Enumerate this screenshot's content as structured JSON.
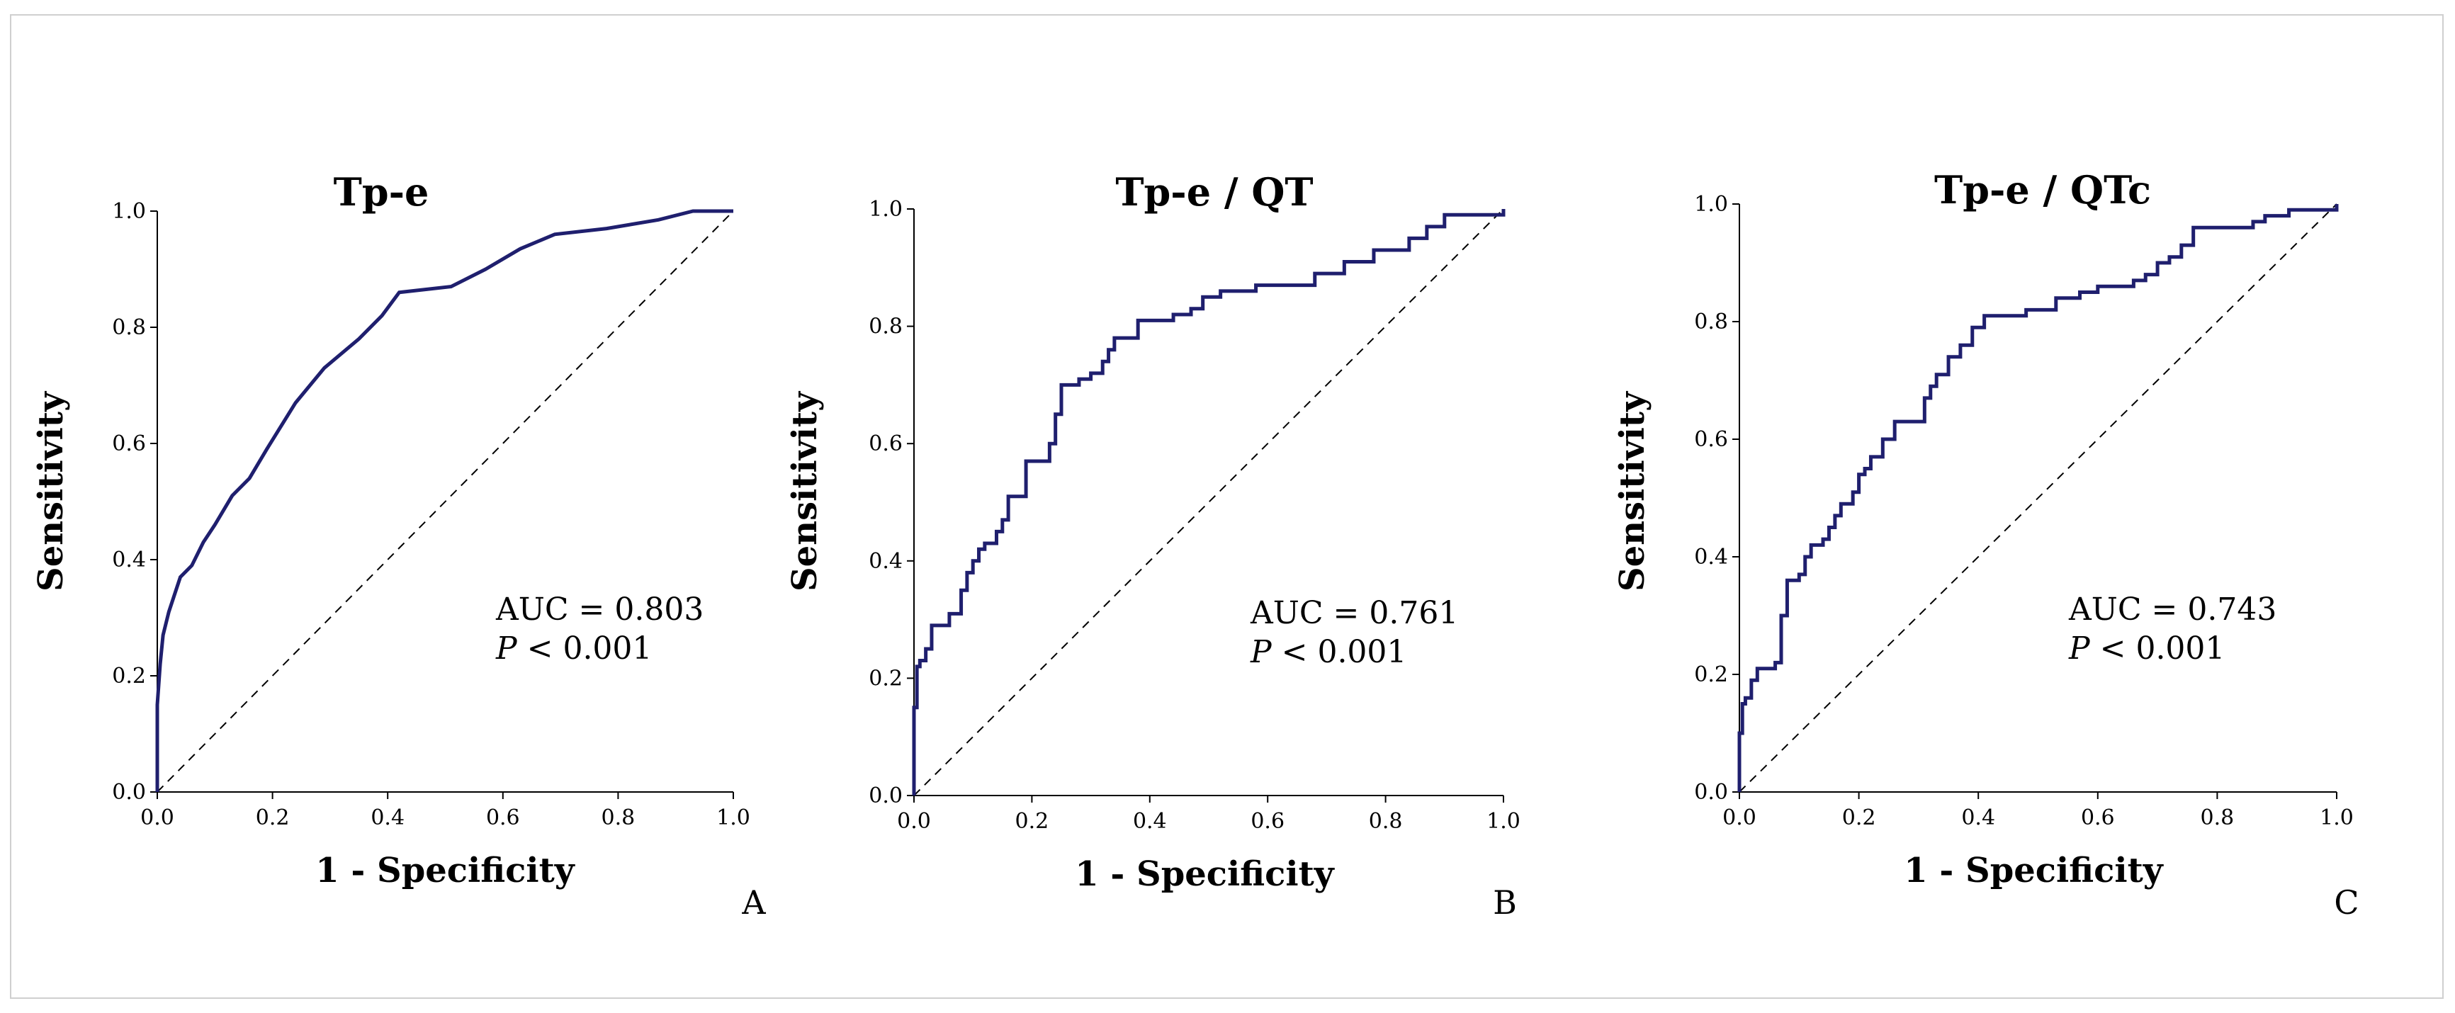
{
  "figure": {
    "border_color": "#cfcfcf"
  },
  "chart_data": [
    {
      "type": "line",
      "chart_subtype": "roc",
      "title": "Tp-e",
      "xlabel": "1 - Specificity",
      "ylabel": "Sensitivity",
      "xlim": [
        0,
        1
      ],
      "ylim": [
        0,
        1
      ],
      "x_ticks": [
        "0.0",
        "0.2",
        "0.4",
        "0.6",
        "0.8",
        "1.0"
      ],
      "y_ticks": [
        "0.0",
        "0.2",
        "0.4",
        "0.6",
        "0.8",
        "1.0"
      ],
      "stat_label": "AUC = 0.803",
      "p_symbol": "P",
      "p_rest": " < 0.001",
      "panel_letter": "A",
      "curve_color": "#1f1f6e",
      "step": false,
      "series": [
        {
          "name": "ROC",
          "x": [
            0,
            0,
            0.005,
            0.01,
            0.02,
            0.03,
            0.04,
            0.06,
            0.08,
            0.1,
            0.13,
            0.16,
            0.19,
            0.24,
            0.29,
            0.35,
            0.39,
            0.42,
            0.51,
            0.57,
            0.63,
            0.69,
            0.78,
            0.87,
            0.93,
            0.97,
            1.0
          ],
          "y": [
            0,
            0.15,
            0.22,
            0.27,
            0.31,
            0.34,
            0.37,
            0.39,
            0.43,
            0.46,
            0.51,
            0.54,
            0.59,
            0.67,
            0.73,
            0.78,
            0.82,
            0.86,
            0.87,
            0.9,
            0.935,
            0.96,
            0.97,
            0.985,
            1.0,
            1.0,
            1.0
          ]
        },
        {
          "name": "Reference",
          "x": [
            0,
            1
          ],
          "y": [
            0,
            1
          ]
        }
      ]
    },
    {
      "type": "line",
      "chart_subtype": "roc",
      "title": "Tp-e / QT",
      "xlabel": "1 - Specificity",
      "ylabel": "Sensitivity",
      "xlim": [
        0,
        1
      ],
      "ylim": [
        0,
        1
      ],
      "x_ticks": [
        "0.0",
        "0.2",
        "0.4",
        "0.6",
        "0.8",
        "1.0"
      ],
      "y_ticks": [
        "0.0",
        "0.2",
        "0.4",
        "0.6",
        "0.8",
        "1.0"
      ],
      "stat_label": "AUC = 0.761",
      "p_symbol": "P",
      "p_rest": " < 0.001",
      "panel_letter": "B",
      "curve_color": "#1f1f6e",
      "step": true,
      "series": [
        {
          "name": "ROC",
          "x": [
            0,
            0.005,
            0.01,
            0.02,
            0.03,
            0.04,
            0.06,
            0.08,
            0.09,
            0.1,
            0.11,
            0.12,
            0.14,
            0.15,
            0.16,
            0.17,
            0.19,
            0.21,
            0.23,
            0.24,
            0.25,
            0.26,
            0.28,
            0.3,
            0.32,
            0.33,
            0.34,
            0.36,
            0.38,
            0.44,
            0.47,
            0.49,
            0.52,
            0.58,
            0.64,
            0.68,
            0.73,
            0.78,
            0.84,
            0.87,
            0.9,
            1.0
          ],
          "y": [
            0.15,
            0.22,
            0.23,
            0.25,
            0.29,
            0.29,
            0.31,
            0.35,
            0.38,
            0.4,
            0.42,
            0.43,
            0.45,
            0.47,
            0.51,
            0.51,
            0.57,
            0.57,
            0.6,
            0.65,
            0.7,
            0.7,
            0.71,
            0.72,
            0.74,
            0.76,
            0.78,
            0.78,
            0.81,
            0.82,
            0.83,
            0.85,
            0.86,
            0.87,
            0.87,
            0.89,
            0.91,
            0.93,
            0.95,
            0.97,
            0.99,
            1.0
          ]
        },
        {
          "name": "Reference",
          "x": [
            0,
            1
          ],
          "y": [
            0,
            1
          ]
        }
      ]
    },
    {
      "type": "line",
      "chart_subtype": "roc",
      "title": "Tp-e / QTc",
      "xlabel": "1 - Specificity",
      "ylabel": "Sensitivity",
      "xlim": [
        0,
        1
      ],
      "ylim": [
        0,
        1
      ],
      "x_ticks": [
        "0.0",
        "0.2",
        "0.4",
        "0.6",
        "0.8",
        "1.0"
      ],
      "y_ticks": [
        "0.0",
        "0.2",
        "0.4",
        "0.6",
        "0.8",
        "1.0"
      ],
      "stat_label": "AUC = 0.743",
      "p_symbol": "P",
      "p_rest": " < 0.001",
      "panel_letter": "C",
      "curve_color": "#1f1f6e",
      "step": true,
      "series": [
        {
          "name": "ROC",
          "x": [
            0,
            0.005,
            0.01,
            0.02,
            0.03,
            0.04,
            0.06,
            0.07,
            0.08,
            0.1,
            0.11,
            0.12,
            0.14,
            0.15,
            0.16,
            0.17,
            0.19,
            0.2,
            0.21,
            0.22,
            0.24,
            0.26,
            0.29,
            0.31,
            0.32,
            0.33,
            0.35,
            0.37,
            0.39,
            0.41,
            0.44,
            0.48,
            0.53,
            0.57,
            0.6,
            0.66,
            0.68,
            0.7,
            0.72,
            0.74,
            0.76,
            0.84,
            0.86,
            0.88,
            0.92,
            1.0
          ],
          "y": [
            0.1,
            0.15,
            0.16,
            0.19,
            0.21,
            0.21,
            0.22,
            0.3,
            0.36,
            0.37,
            0.4,
            0.42,
            0.43,
            0.45,
            0.47,
            0.49,
            0.51,
            0.54,
            0.55,
            0.57,
            0.6,
            0.63,
            0.63,
            0.67,
            0.69,
            0.71,
            0.74,
            0.76,
            0.79,
            0.81,
            0.81,
            0.82,
            0.84,
            0.85,
            0.86,
            0.87,
            0.88,
            0.9,
            0.91,
            0.93,
            0.96,
            0.96,
            0.97,
            0.98,
            0.99,
            1.0
          ]
        },
        {
          "name": "Reference",
          "x": [
            0,
            1
          ],
          "y": [
            0,
            1
          ]
        }
      ]
    }
  ]
}
